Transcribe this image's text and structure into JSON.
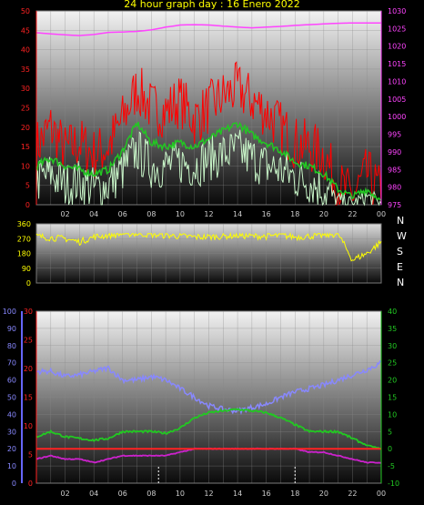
{
  "title": "24 hour graph day : 16 Enero 2022",
  "compass": [
    "N",
    "W",
    "S",
    "E",
    "N"
  ],
  "colors": {
    "wind_gust": "#ff0000",
    "wind_avg": "#22c822",
    "wind_min": "#c8f5c8",
    "pressure": "#ff44ff",
    "direction": "#ffff00",
    "humidity": "#8888ff",
    "temp": "#22c822",
    "dewpoint": "#cc22cc",
    "rain": "#ff2222"
  },
  "chart_data": [
    {
      "name": "wind",
      "type": "line",
      "xticks": [
        "02",
        "04",
        "06",
        "08",
        "10",
        "12",
        "14",
        "16",
        "18",
        "20",
        "22",
        "00"
      ],
      "ylim": [
        0,
        50
      ],
      "yticks": [
        0,
        5,
        10,
        15,
        20,
        25,
        30,
        35,
        40,
        45,
        50
      ],
      "y2lim": [
        975,
        1030
      ],
      "y2ticks": [
        975,
        980,
        985,
        990,
        995,
        1000,
        1005,
        1010,
        1015,
        1020,
        1025,
        1030
      ],
      "series": [
        {
          "key": "gust",
          "hours": [
            0,
            1,
            2,
            3,
            4,
            5,
            6,
            7,
            8,
            9,
            10,
            11,
            12,
            13,
            14,
            15,
            16,
            17,
            18,
            19,
            20,
            21,
            22,
            23,
            24
          ],
          "values": [
            15,
            20,
            14,
            16,
            13,
            15,
            22,
            30,
            25,
            24,
            27,
            22,
            25,
            28,
            30,
            27,
            24,
            20,
            16,
            15,
            13,
            5,
            2,
            8,
            3
          ]
        },
        {
          "key": "avg",
          "hours": [
            0,
            1,
            2,
            3,
            4,
            5,
            6,
            7,
            8,
            9,
            10,
            11,
            12,
            13,
            14,
            15,
            16,
            17,
            18,
            19,
            20,
            21,
            22,
            23,
            24
          ],
          "values": [
            10,
            12,
            10,
            9,
            8,
            9,
            14,
            21,
            16,
            15,
            16,
            15,
            17,
            19,
            21,
            18,
            16,
            14,
            11,
            10,
            8,
            4,
            2,
            4,
            1
          ]
        },
        {
          "key": "min",
          "hours": [
            0,
            1,
            2,
            3,
            4,
            5,
            6,
            7,
            8,
            9,
            10,
            11,
            12,
            13,
            14,
            15,
            16,
            17,
            18,
            19,
            20,
            21,
            22,
            23,
            24
          ],
          "values": [
            6,
            8,
            5,
            6,
            4,
            5,
            9,
            14,
            10,
            10,
            11,
            10,
            12,
            13,
            14,
            12,
            10,
            9,
            7,
            6,
            4,
            1,
            0,
            2,
            0
          ]
        },
        {
          "key": "pressure",
          "hours": [
            0,
            1,
            2,
            3,
            4,
            5,
            6,
            7,
            8,
            9,
            10,
            11,
            12,
            13,
            14,
            15,
            16,
            17,
            18,
            19,
            20,
            21,
            22,
            23,
            24
          ],
          "values": [
            1023.8,
            1023.5,
            1023.2,
            1023.0,
            1023.3,
            1023.9,
            1024.0,
            1024.2,
            1024.6,
            1025.4,
            1026.0,
            1026.1,
            1026.0,
            1025.7,
            1025.4,
            1025.2,
            1025.4,
            1025.6,
            1025.9,
            1026.1,
            1026.3,
            1026.5,
            1026.6,
            1026.6,
            1026.6
          ]
        }
      ]
    },
    {
      "name": "direction",
      "type": "line",
      "ylim": [
        0,
        360
      ],
      "yticks": [
        0,
        90,
        180,
        270,
        360
      ],
      "series": [
        {
          "key": "dir",
          "hours": [
            0,
            1,
            2,
            3,
            4,
            5,
            6,
            7,
            8,
            9,
            10,
            11,
            12,
            13,
            14,
            15,
            16,
            17,
            18,
            19,
            20,
            21,
            22,
            23,
            24
          ],
          "values": [
            285,
            275,
            270,
            250,
            280,
            290,
            300,
            300,
            295,
            290,
            285,
            280,
            280,
            285,
            290,
            285,
            285,
            290,
            280,
            285,
            290,
            300,
            140,
            180,
            250
          ]
        }
      ]
    },
    {
      "name": "temperature",
      "type": "line",
      "xticks": [
        "02",
        "04",
        "06",
        "08",
        "10",
        "12",
        "14",
        "16",
        "18",
        "20",
        "22",
        "00"
      ],
      "ylim": [
        0,
        100
      ],
      "yticks": [
        0,
        10,
        20,
        30,
        40,
        50,
        60,
        70,
        80,
        90,
        100
      ],
      "y2lim": [
        -10,
        40
      ],
      "y2ticks": [
        -10,
        -5,
        0,
        5,
        10,
        15,
        20,
        25,
        30,
        35,
        40
      ],
      "series": [
        {
          "key": "humidity",
          "hours": [
            0,
            1,
            2,
            3,
            4,
            5,
            6,
            7,
            8,
            9,
            10,
            11,
            12,
            13,
            14,
            15,
            16,
            17,
            18,
            19,
            20,
            21,
            22,
            23,
            24
          ],
          "values": [
            65,
            65,
            62,
            63,
            65,
            67,
            60,
            60,
            62,
            60,
            55,
            50,
            45,
            43,
            42,
            44,
            46,
            50,
            53,
            55,
            57,
            60,
            63,
            66,
            70
          ]
        },
        {
          "key": "temp",
          "hours": [
            0,
            1,
            2,
            3,
            4,
            5,
            6,
            7,
            8,
            9,
            10,
            11,
            12,
            13,
            14,
            15,
            16,
            17,
            18,
            19,
            20,
            21,
            22,
            23,
            24
          ],
          "values": [
            3.5,
            5,
            3.5,
            3,
            2.5,
            3,
            5,
            5,
            5,
            4.5,
            6,
            9,
            10.5,
            11,
            11.5,
            11,
            10.5,
            9,
            7,
            5,
            5,
            5,
            3,
            1,
            0
          ]
        },
        {
          "key": "dewpoint",
          "hours": [
            0,
            1,
            2,
            3,
            4,
            5,
            6,
            7,
            8,
            9,
            10,
            11,
            12,
            13,
            14,
            15,
            16,
            17,
            18,
            19,
            20,
            21,
            22,
            23,
            24
          ],
          "values": [
            -3,
            -2,
            -3,
            -3,
            -4,
            -3,
            -2,
            -2,
            -2,
            -2,
            -1,
            0,
            0,
            0,
            0,
            0,
            0,
            0,
            0,
            -1,
            -1,
            -2,
            -3,
            -4,
            -4
          ]
        },
        {
          "key": "rain",
          "hours": [
            0,
            24
          ],
          "values": [
            0,
            0
          ]
        }
      ]
    }
  ]
}
